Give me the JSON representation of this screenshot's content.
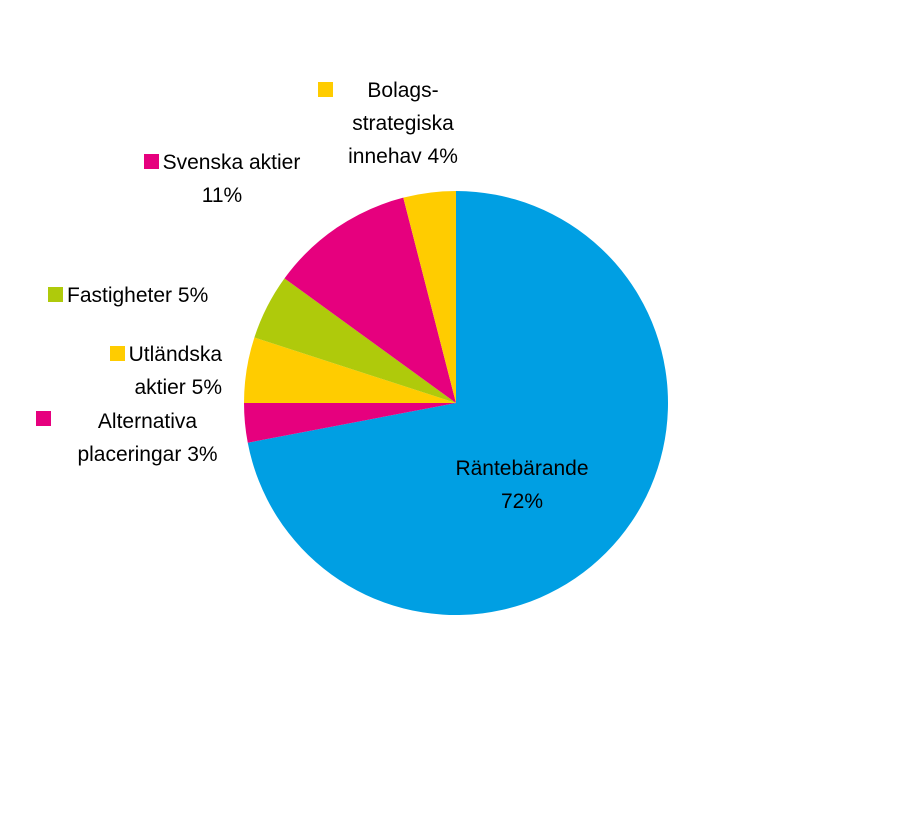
{
  "chart_data": {
    "type": "pie",
    "categories": [
      "Räntebärande",
      "Alternativa placeringar",
      "Utländska aktier",
      "Fastigheter",
      "Svenska aktier",
      "Bolags-strategiska innehav"
    ],
    "values": [
      72,
      3,
      5,
      5,
      11,
      4
    ],
    "value_labels": [
      "72%",
      "3%",
      "5%",
      "5%",
      "11%",
      "4%"
    ],
    "colors": [
      "#009fe3",
      "#e6007e",
      "#ffcc00",
      "#afca0b",
      "#e6007e",
      "#ffcc00"
    ]
  }
}
